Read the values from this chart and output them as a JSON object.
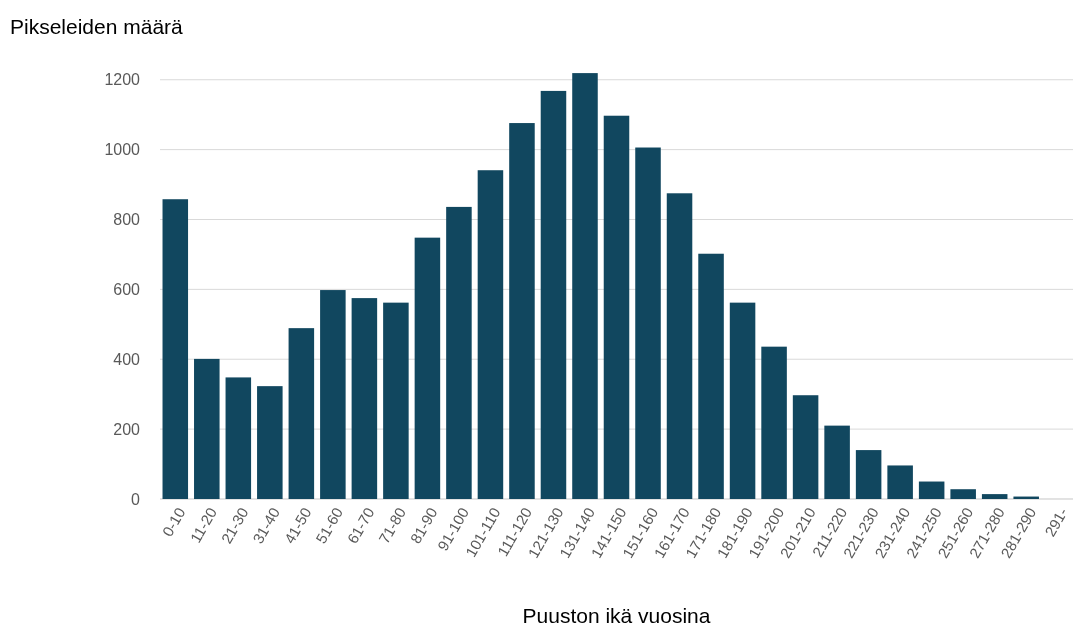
{
  "chart_data": {
    "type": "bar",
    "xlabel": "Puuston ikä vuosina",
    "ylabel": "Pikseleiden määrä",
    "categories": [
      "0-10",
      "11-20",
      "21-30",
      "31-40",
      "41-50",
      "51-60",
      "61-70",
      "71-80",
      "81-90",
      "91-100",
      "101-110",
      "111-120",
      "121-130",
      "131-140",
      "141-150",
      "151-160",
      "161-170",
      "171-180",
      "181-190",
      "191-200",
      "201-210",
      "211-220",
      "221-230",
      "231-240",
      "241-250",
      "251-260",
      "271-280",
      "281-290",
      "291-"
    ],
    "values": [
      858,
      401,
      348,
      323,
      489,
      598,
      575,
      562,
      748,
      836,
      941,
      1076,
      1168,
      1219,
      1097,
      1006,
      875,
      702,
      562,
      436,
      297,
      210,
      140,
      96,
      50,
      28,
      14,
      7,
      0
    ],
    "color": "#11475f",
    "ylim": [
      0,
      1225
    ],
    "yticks": [
      0,
      200,
      400,
      600,
      800,
      1000,
      1200
    ],
    "grid": "y"
  }
}
